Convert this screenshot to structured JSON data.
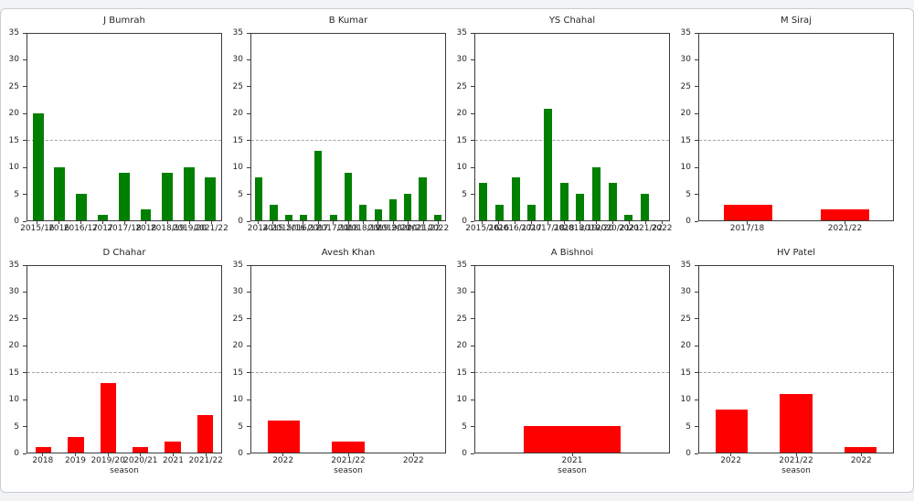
{
  "page": {
    "background": "#f2f3f5",
    "card_background": "#ffffff",
    "card_border": "#c9cdd1"
  },
  "colors": {
    "green_bar": "#008000",
    "red_bar": "#ff0000",
    "reference_line": "#a3a3a3",
    "axis": "#3c3c3c",
    "text": "#262626"
  },
  "chart_data": [
    {
      "type": "bar",
      "title": "J Bumrah",
      "categories": [
        "2015/16",
        "2016",
        "2016/17",
        "2017",
        "2017/18",
        "2018",
        "2018/19",
        "2019/20",
        "2021/22"
      ],
      "values": [
        20,
        10,
        5,
        1,
        9,
        2,
        9,
        10,
        8
      ],
      "bar_color": "#008000",
      "xlabel": "",
      "ylabel": "",
      "ylim": [
        0,
        35
      ],
      "yticks": [
        0,
        5,
        10,
        15,
        20,
        25,
        30,
        35
      ],
      "ref_line": {
        "y": 15,
        "style": "dashed",
        "color": "#a3a3a3"
      },
      "grid": false,
      "legend": false
    },
    {
      "type": "bar",
      "title": "B Kumar",
      "categories": [
        "2014",
        "2015",
        "2015/16",
        "2016/17",
        "2017",
        "2017/18",
        "2018",
        "2018/19",
        "2019",
        "2019/20",
        "2020/21",
        "2021/22",
        "2022"
      ],
      "values": [
        8,
        3,
        1,
        1,
        13,
        1,
        9,
        3,
        2,
        4,
        5,
        8,
        1
      ],
      "bar_color": "#008000",
      "xlabel": "",
      "ylabel": "",
      "ylim": [
        0,
        35
      ],
      "yticks": [
        0,
        5,
        10,
        15,
        20,
        25,
        30,
        35
      ],
      "ref_line": {
        "y": 15,
        "style": "dashed",
        "color": "#a3a3a3"
      },
      "grid": false,
      "legend": false
    },
    {
      "type": "bar",
      "title": "YS Chahal",
      "categories": [
        "2015/16",
        "2016",
        "2016/17",
        "2017",
        "2017/18",
        "2018",
        "2018/19",
        "2019/20",
        "2020/21",
        "2021",
        "2021/22",
        "2022"
      ],
      "values": [
        7,
        3,
        8,
        3,
        21,
        7,
        5,
        10,
        7,
        1,
        5,
        0
      ],
      "bar_color": "#008000",
      "xlabel": "",
      "ylabel": "",
      "ylim": [
        0,
        35
      ],
      "yticks": [
        0,
        5,
        10,
        15,
        20,
        25,
        30,
        35
      ],
      "ref_line": {
        "y": 15,
        "style": "dashed",
        "color": "#a3a3a3"
      },
      "grid": false,
      "legend": false
    },
    {
      "type": "bar",
      "title": "M Siraj",
      "categories": [
        "2017/18",
        "2021/22"
      ],
      "values": [
        3,
        2
      ],
      "bar_color": "#ff0000",
      "xlabel": "",
      "ylabel": "",
      "ylim": [
        0,
        35
      ],
      "yticks": [
        0,
        5,
        10,
        15,
        20,
        25,
        30,
        35
      ],
      "ref_line": {
        "y": 15,
        "style": "dashed",
        "color": "#a3a3a3"
      },
      "grid": false,
      "legend": false
    },
    {
      "type": "bar",
      "title": "D Chahar",
      "categories": [
        "2018",
        "2019",
        "2019/20",
        "2020/21",
        "2021",
        "2021/22"
      ],
      "values": [
        1,
        3,
        13,
        1,
        2,
        7
      ],
      "bar_color": "#ff0000",
      "xlabel": "season",
      "ylabel": "",
      "ylim": [
        0,
        35
      ],
      "yticks": [
        0,
        5,
        10,
        15,
        20,
        25,
        30,
        35
      ],
      "ref_line": {
        "y": 15,
        "style": "dashed",
        "color": "#a3a3a3"
      },
      "grid": false,
      "legend": false
    },
    {
      "type": "bar",
      "title": "Avesh Khan",
      "categories": [
        "2022",
        "2021/22",
        "2022"
      ],
      "values": [
        6,
        2,
        0
      ],
      "bar_color": "#ff0000",
      "xlabel": "season",
      "ylabel": "",
      "ylim": [
        0,
        35
      ],
      "yticks": [
        0,
        5,
        10,
        15,
        20,
        25,
        30,
        35
      ],
      "ref_line": {
        "y": 15,
        "style": "dashed",
        "color": "#a3a3a3"
      },
      "grid": false,
      "legend": false
    },
    {
      "type": "bar",
      "title": "A Bishnoi",
      "categories": [
        "2021"
      ],
      "values": [
        5
      ],
      "bar_color": "#ff0000",
      "xlabel": "season",
      "ylabel": "",
      "ylim": [
        0,
        35
      ],
      "yticks": [
        0,
        5,
        10,
        15,
        20,
        25,
        30,
        35
      ],
      "ref_line": {
        "y": 15,
        "style": "dashed",
        "color": "#a3a3a3"
      },
      "grid": false,
      "legend": false
    },
    {
      "type": "bar",
      "title": "HV Patel",
      "categories": [
        "2022",
        "2021/22",
        "2022"
      ],
      "values": [
        8,
        11,
        1
      ],
      "bar_color": "#ff0000",
      "xlabel": "season",
      "ylabel": "",
      "ylim": [
        0,
        35
      ],
      "yticks": [
        0,
        5,
        10,
        15,
        20,
        25,
        30,
        35
      ],
      "ref_line": {
        "y": 15,
        "style": "dashed",
        "color": "#a3a3a3"
      },
      "grid": false,
      "legend": false
    }
  ]
}
